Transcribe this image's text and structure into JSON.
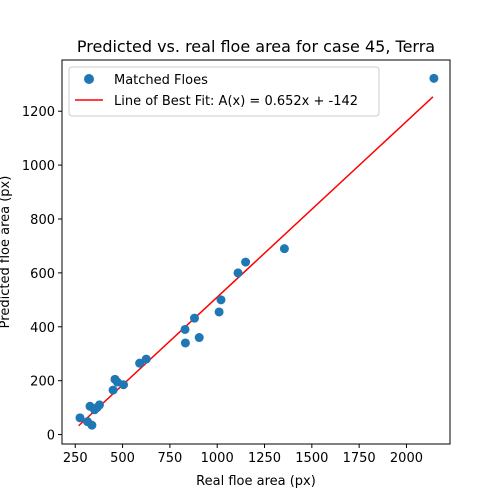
{
  "chart_data": {
    "type": "scatter",
    "title": "Predicted vs. real floe area  for case 45, Terra",
    "xlabel": "Real floe area (px)",
    "ylabel": "Predicted floe area (px)",
    "xlim": [
      180,
      2230
    ],
    "ylim": [
      -35,
      1390
    ],
    "xticks": [
      250,
      500,
      750,
      1000,
      1250,
      1500,
      1750,
      2000
    ],
    "yticks": [
      0,
      200,
      400,
      600,
      800,
      1000,
      1200
    ],
    "legend_position": "upper-left",
    "series": [
      {
        "name": "Matched Floes",
        "kind": "scatter",
        "color": "#1f77b4",
        "points": [
          [
            275,
            62
          ],
          [
            315,
            48
          ],
          [
            328,
            105
          ],
          [
            338,
            35
          ],
          [
            352,
            92
          ],
          [
            365,
            100
          ],
          [
            378,
            110
          ],
          [
            450,
            165
          ],
          [
            460,
            205
          ],
          [
            472,
            195
          ],
          [
            505,
            185
          ],
          [
            590,
            265
          ],
          [
            625,
            280
          ],
          [
            830,
            390
          ],
          [
            832,
            340
          ],
          [
            880,
            432
          ],
          [
            905,
            360
          ],
          [
            1010,
            455
          ],
          [
            1020,
            500
          ],
          [
            1110,
            600
          ],
          [
            1150,
            640
          ],
          [
            1355,
            690
          ],
          [
            2145,
            1322
          ]
        ]
      },
      {
        "name": "Line of Best Fit: A(x) = 0.652x + -142",
        "kind": "line",
        "color": "#ff0000",
        "slope": 0.652,
        "intercept": -142,
        "x_range": [
          268,
          2140
        ]
      }
    ]
  }
}
